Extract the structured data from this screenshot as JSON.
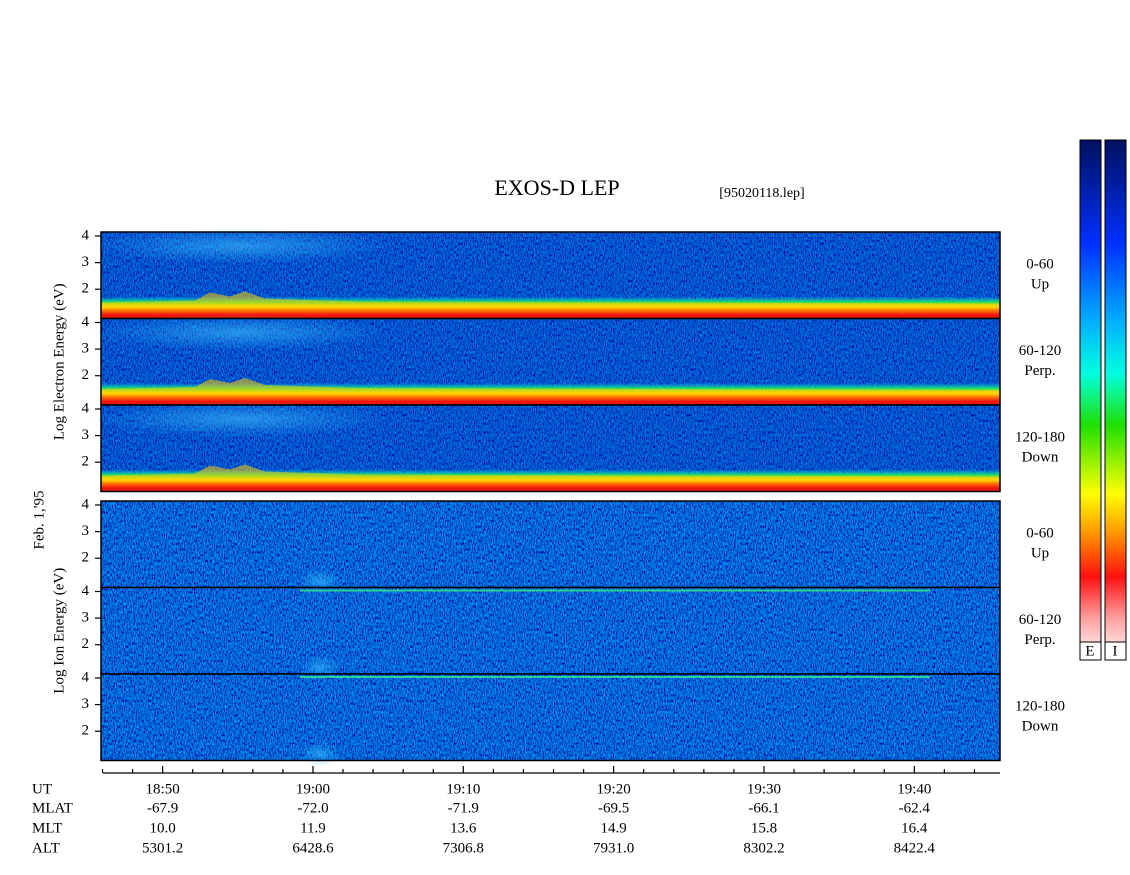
{
  "chart_data": {
    "type": "spectrogram",
    "title": "EXOS-D LEP",
    "subtitle": "[95020118.lep]",
    "date_label": "Feb. 1,'95",
    "xlim": [
      1125.9,
      1185.7
    ],
    "xticks": [
      {
        "value": 1130,
        "label": "18:50"
      },
      {
        "value": 1140,
        "label": "19:00"
      },
      {
        "value": 1150,
        "label": "19:10"
      },
      {
        "value": 1160,
        "label": "19:20"
      },
      {
        "value": 1170,
        "label": "19:30"
      },
      {
        "value": 1180,
        "label": "19:40"
      }
    ],
    "xminorticks": [
      1126,
      1128,
      1132,
      1134,
      1136,
      1138,
      1142,
      1144,
      1146,
      1148,
      1152,
      1154,
      1156,
      1158,
      1162,
      1164,
      1166,
      1168,
      1172,
      1174,
      1176,
      1178,
      1182,
      1184
    ],
    "x_row_label": "UT",
    "ephemeris": [
      {
        "name": "MLAT",
        "values": [
          "-67.9",
          "-72.0",
          "-71.9",
          "-69.5",
          "-66.1",
          "-62.4"
        ]
      },
      {
        "name": "MLT",
        "values": [
          "10.0",
          "11.9",
          "13.6",
          "14.9",
          "15.8",
          "16.4"
        ]
      },
      {
        "name": "ALT",
        "values": [
          "5301.2",
          "6428.6",
          "7306.8",
          "7931.0",
          "8302.2",
          "8422.4"
        ]
      }
    ],
    "groups": [
      {
        "ylabel": "Log Electron Energy (eV)",
        "panels": [
          {
            "label": [
              "0-60",
              "Up"
            ],
            "ylim": [
              0.9,
              4.15
            ],
            "yticks": [
              2,
              3,
              4
            ]
          },
          {
            "label": [
              "60-120",
              "Perp."
            ],
            "ylim": [
              0.9,
              4.15
            ],
            "yticks": [
              2,
              3,
              4
            ]
          },
          {
            "label": [
              "120-180",
              "Down"
            ],
            "ylim": [
              0.9,
              4.15
            ],
            "yticks": [
              2,
              3,
              4
            ]
          }
        ]
      },
      {
        "ylabel": "Log Ion Energy (eV)",
        "panels": [
          {
            "label": [
              "0-60",
              "Up"
            ],
            "ylim": [
              0.9,
              4.15
            ],
            "yticks": [
              2,
              3,
              4
            ]
          },
          {
            "label": [
              "60-120",
              "Perp."
            ],
            "ylim": [
              0.9,
              4.15
            ],
            "yticks": [
              2,
              3,
              4
            ]
          },
          {
            "label": [
              "120-180",
              "Down"
            ],
            "ylim": [
              0.9,
              4.15
            ],
            "yticks": [
              2,
              3,
              4
            ]
          }
        ]
      }
    ],
    "colorbar_labels": [
      "E",
      "I"
    ]
  }
}
